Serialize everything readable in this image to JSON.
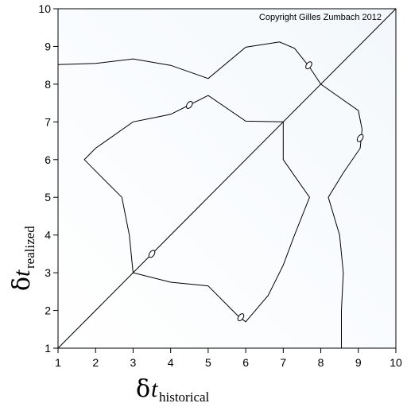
{
  "chart_data": {
    "type": "line",
    "annotation": "Copyright Gilles Zumbach 2012",
    "xlabel": {
      "symbol": "δ",
      "var": "t",
      "sub": "historical"
    },
    "ylabel": {
      "symbol": "δ",
      "var": "t",
      "sub": "realized"
    },
    "xlim": [
      1,
      10
    ],
    "ylim": [
      1,
      10
    ],
    "xticks": [
      1,
      2,
      3,
      4,
      5,
      6,
      7,
      8,
      9,
      10
    ],
    "yticks": [
      1,
      2,
      3,
      4,
      5,
      6,
      7,
      8,
      9,
      10
    ],
    "grid": false,
    "diagonal": [
      [
        1,
        1
      ],
      [
        10,
        10
      ]
    ],
    "series": [
      {
        "points": [
          [
            1,
            8.52
          ],
          [
            2,
            8.55
          ],
          [
            3,
            8.67
          ],
          [
            4,
            8.5
          ],
          [
            5,
            8.15
          ],
          [
            6,
            8.98
          ],
          [
            6.9,
            9.12
          ],
          [
            7.3,
            8.95
          ],
          [
            7.7,
            8.45
          ],
          [
            8,
            8
          ],
          [
            8.5,
            7.65
          ],
          [
            9,
            7.3
          ],
          [
            9.1,
            6.8
          ],
          [
            9.05,
            6.3
          ],
          [
            8.6,
            5.65
          ],
          [
            8.2,
            5.0
          ],
          [
            8.5,
            4.0
          ],
          [
            8.6,
            3.0
          ],
          [
            8.55,
            2.0
          ],
          [
            8.55,
            1.0
          ]
        ],
        "markers": [
          [
            7.68,
            8.5
          ],
          [
            9.05,
            6.57
          ]
        ]
      },
      {
        "points": [
          [
            4.5,
            7.45
          ],
          [
            5.0,
            7.7
          ],
          [
            6.0,
            7.02
          ],
          [
            7.0,
            7.0
          ],
          [
            7.0,
            6.0
          ],
          [
            7.7,
            5.0
          ],
          [
            7.3,
            4.0
          ],
          [
            7.0,
            3.2
          ],
          [
            6.6,
            2.4
          ],
          [
            6.0,
            1.7
          ],
          [
            5.8,
            1.85
          ],
          [
            5.0,
            2.65
          ],
          [
            4.0,
            2.75
          ],
          [
            3.0,
            3.0
          ],
          [
            2.9,
            4.0
          ],
          [
            2.7,
            5.0
          ],
          [
            2.1,
            5.6
          ],
          [
            1.7,
            6.0
          ],
          [
            2.0,
            6.3
          ],
          [
            3.0,
            7.0
          ],
          [
            3.5,
            7.1
          ],
          [
            4.0,
            7.2
          ],
          [
            4.5,
            7.45
          ]
        ],
        "markers": [
          [
            4.5,
            7.45
          ],
          [
            5.87,
            1.82
          ],
          [
            3.5,
            3.5
          ]
        ]
      }
    ]
  }
}
